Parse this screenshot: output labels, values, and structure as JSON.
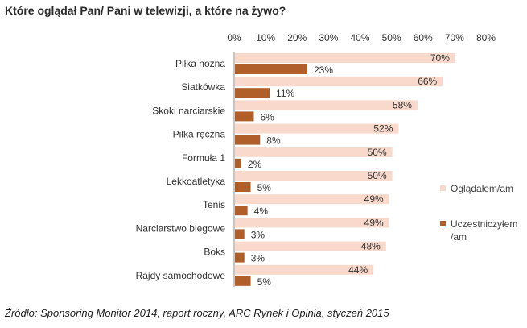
{
  "chart_data": {
    "type": "bar",
    "orientation": "horizontal",
    "title": "Które oglądał Pan/ Pani w telewizji, a które na żywo?",
    "categories": [
      "Piłka nożna",
      "Siatkówka",
      "Skoki narciarskie",
      "Piłka ręczna",
      "Formuła 1",
      "Lekkoatletyka",
      "Tenis",
      "Narciarstwo biegowe",
      "Boks",
      "Rajdy samochodowe"
    ],
    "series": [
      {
        "name": "Oglądałem/am",
        "color": "#f9d9cb",
        "values": [
          70,
          66,
          58,
          52,
          50,
          50,
          49,
          49,
          48,
          44
        ],
        "labels": [
          "70%",
          "66%",
          "58%",
          "52%",
          "50%",
          "50%",
          "49%",
          "49%",
          "48%",
          "44%"
        ]
      },
      {
        "name": "Uczestniczyłem/am",
        "legend_lines": [
          "Uczestniczyłem",
          "/am"
        ],
        "color": "#b05e2a",
        "values": [
          23,
          11,
          6,
          8,
          2,
          5,
          4,
          3,
          3,
          5
        ],
        "labels": [
          "23%",
          "11%",
          "6%",
          "8%",
          "2%",
          "5%",
          "4%",
          "3%",
          "3%",
          "5%"
        ]
      }
    ],
    "xlim": [
      0,
      80
    ],
    "xticks": [
      0,
      10,
      20,
      30,
      40,
      50,
      60,
      70,
      80
    ],
    "xtick_labels": [
      "0%",
      "10%",
      "20%",
      "30%",
      "40%",
      "50%",
      "60%",
      "70%",
      "80%"
    ],
    "xlabel": "",
    "ylabel": "",
    "grid": false,
    "legend_position": "right"
  },
  "source": "Źródło: Sponsoring Monitor 2014, raport roczny, ARC Rynek i Opinia, styczeń 2015"
}
